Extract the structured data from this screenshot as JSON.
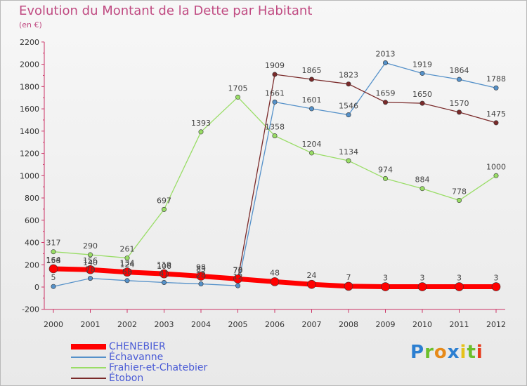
{
  "title": "Evolution du Montant de la Dette par Habitant",
  "subtitle": "(en €)",
  "logo_text": "Proxiti",
  "chart_data": {
    "type": "line",
    "title": "Evolution du Montant de la Dette par Habitant",
    "subtitle": "(en €)",
    "xlabel": "",
    "ylabel": "",
    "x": [
      "2000",
      "2001",
      "2002",
      "2003",
      "2004",
      "2005",
      "2006",
      "2007",
      "2008",
      "2009",
      "2010",
      "2011",
      "2012"
    ],
    "ylim": [
      -200,
      2200
    ],
    "yticks": [
      -200,
      0,
      200,
      400,
      600,
      800,
      1000,
      1200,
      1400,
      1600,
      1800,
      2000,
      2200
    ],
    "grid": false,
    "legend_position": "bottom-left",
    "series": [
      {
        "name": "Échavanne",
        "color": "#5591c9",
        "values": [
          5,
          78,
          58,
          41,
          28,
          12,
          1661,
          1601,
          1546,
          2013,
          1919,
          1864,
          1788
        ]
      },
      {
        "name": "Frahier-et-Chatebier",
        "color": "#99dd66",
        "values": [
          317,
          290,
          261,
          697,
          1393,
          1705,
          1358,
          1204,
          1134,
          974,
          884,
          778,
          1000
        ]
      },
      {
        "name": "Étobon",
        "color": "#7a2a2a",
        "values": [
          158,
          140,
          124,
          106,
          83,
          70,
          1909,
          1865,
          1823,
          1659,
          1650,
          1570,
          1475
        ]
      },
      {
        "name": "CHENEBIER",
        "color": "#ff0000",
        "values": [
          164,
          156,
          134,
          119,
          98,
          73,
          48,
          24,
          7,
          3,
          3,
          3,
          3
        ]
      }
    ]
  }
}
